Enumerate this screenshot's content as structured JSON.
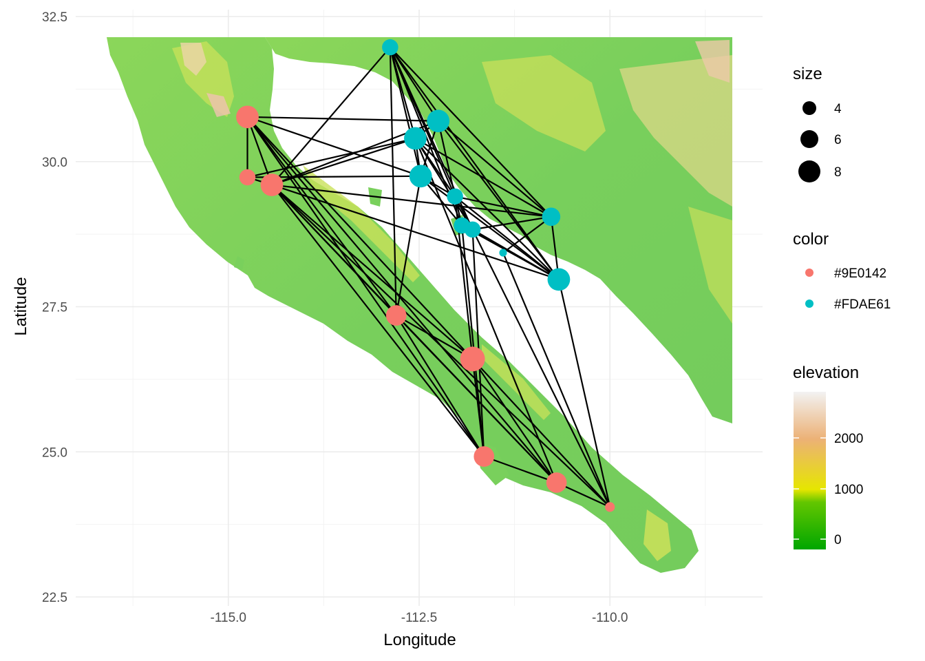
{
  "chart_data": {
    "type": "scatter",
    "xlabel": "Longitude",
    "ylabel": "Latitude",
    "xlim": [
      -117.0,
      -108.0
    ],
    "ylim": [
      22.5,
      32.5
    ],
    "x_ticks": [
      -115.0,
      -112.5,
      -110.0
    ],
    "x_tick_labels": [
      "-115.0",
      "-112.5",
      "-110.0"
    ],
    "y_ticks": [
      22.5,
      25.0,
      27.5,
      30.0,
      32.5
    ],
    "y_tick_labels": [
      "22.5",
      "25.0",
      "27.5",
      "30.0",
      "32.5"
    ],
    "grid": true,
    "colors": {
      "#9E0142": "#f8766d",
      "#FDAE61": "#00bfc4"
    },
    "nodes": [
      {
        "id": "a",
        "lon": -114.75,
        "lat": 30.77,
        "size": 8,
        "color": "#9E0142"
      },
      {
        "id": "b",
        "lon": -114.75,
        "lat": 29.73,
        "size": 5,
        "color": "#9E0142"
      },
      {
        "id": "c",
        "lon": -114.43,
        "lat": 29.6,
        "size": 8,
        "color": "#9E0142"
      },
      {
        "id": "d",
        "lon": -112.8,
        "lat": 27.35,
        "size": 7,
        "color": "#9E0142"
      },
      {
        "id": "e",
        "lon": -111.8,
        "lat": 26.6,
        "size": 9,
        "color": "#9E0142"
      },
      {
        "id": "f",
        "lon": -111.65,
        "lat": 24.92,
        "size": 7,
        "color": "#9E0142"
      },
      {
        "id": "g",
        "lon": -110.7,
        "lat": 24.47,
        "size": 7,
        "color": "#9E0142"
      },
      {
        "id": "h",
        "lon": -110.0,
        "lat": 24.05,
        "size": 2,
        "color": "#9E0142"
      },
      {
        "id": "i",
        "lon": -112.88,
        "lat": 31.97,
        "size": 5,
        "color": "#FDAE61"
      },
      {
        "id": "j",
        "lon": -112.25,
        "lat": 30.7,
        "size": 8,
        "color": "#FDAE61"
      },
      {
        "id": "k",
        "lon": -112.55,
        "lat": 30.4,
        "size": 8,
        "color": "#FDAE61"
      },
      {
        "id": "l",
        "lon": -112.48,
        "lat": 29.75,
        "size": 8,
        "color": "#FDAE61"
      },
      {
        "id": "m",
        "lon": -112.03,
        "lat": 29.4,
        "size": 5,
        "color": "#FDAE61"
      },
      {
        "id": "n",
        "lon": -111.94,
        "lat": 28.9,
        "size": 5,
        "color": "#FDAE61"
      },
      {
        "id": "o",
        "lon": -111.8,
        "lat": 28.83,
        "size": 5,
        "color": "#FDAE61"
      },
      {
        "id": "p",
        "lon": -111.4,
        "lat": 28.43,
        "size": 1,
        "color": "#FDAE61"
      },
      {
        "id": "q",
        "lon": -110.77,
        "lat": 29.05,
        "size": 6,
        "color": "#FDAE61"
      },
      {
        "id": "r",
        "lon": -110.67,
        "lat": 27.97,
        "size": 8,
        "color": "#FDAE61"
      }
    ],
    "edges": [
      [
        "a",
        "b"
      ],
      [
        "a",
        "c"
      ],
      [
        "a",
        "d"
      ],
      [
        "a",
        "e"
      ],
      [
        "a",
        "f"
      ],
      [
        "a",
        "g"
      ],
      [
        "a",
        "j"
      ],
      [
        "a",
        "l"
      ],
      [
        "b",
        "c"
      ],
      [
        "b",
        "k"
      ],
      [
        "b",
        "l"
      ],
      [
        "c",
        "i"
      ],
      [
        "c",
        "j"
      ],
      [
        "c",
        "k"
      ],
      [
        "c",
        "d"
      ],
      [
        "c",
        "e"
      ],
      [
        "c",
        "f"
      ],
      [
        "c",
        "g"
      ],
      [
        "c",
        "h"
      ],
      [
        "c",
        "r"
      ],
      [
        "c",
        "q"
      ],
      [
        "d",
        "e"
      ],
      [
        "d",
        "f"
      ],
      [
        "d",
        "g"
      ],
      [
        "d",
        "l"
      ],
      [
        "d",
        "i"
      ],
      [
        "e",
        "f"
      ],
      [
        "e",
        "g"
      ],
      [
        "e",
        "h"
      ],
      [
        "e",
        "m"
      ],
      [
        "f",
        "g"
      ],
      [
        "f",
        "n"
      ],
      [
        "f",
        "o"
      ],
      [
        "g",
        "h"
      ],
      [
        "g",
        "k"
      ],
      [
        "h",
        "o"
      ],
      [
        "h",
        "r"
      ],
      [
        "h",
        "p"
      ],
      [
        "i",
        "j"
      ],
      [
        "i",
        "k"
      ],
      [
        "i",
        "l"
      ],
      [
        "i",
        "m"
      ],
      [
        "i",
        "n"
      ],
      [
        "i",
        "o"
      ],
      [
        "i",
        "q"
      ],
      [
        "i",
        "r"
      ],
      [
        "j",
        "k"
      ],
      [
        "j",
        "l"
      ],
      [
        "j",
        "m"
      ],
      [
        "j",
        "q"
      ],
      [
        "j",
        "r"
      ],
      [
        "k",
        "l"
      ],
      [
        "k",
        "m"
      ],
      [
        "k",
        "o"
      ],
      [
        "k",
        "q"
      ],
      [
        "k",
        "r"
      ],
      [
        "l",
        "m"
      ],
      [
        "l",
        "n"
      ],
      [
        "l",
        "r"
      ],
      [
        "m",
        "n"
      ],
      [
        "m",
        "o"
      ],
      [
        "m",
        "q"
      ],
      [
        "m",
        "r"
      ],
      [
        "n",
        "o"
      ],
      [
        "n",
        "r"
      ],
      [
        "o",
        "r"
      ],
      [
        "o",
        "q"
      ],
      [
        "p",
        "q"
      ],
      [
        "q",
        "r"
      ]
    ]
  },
  "legend": {
    "size": {
      "title": "size",
      "labels": [
        "4",
        "6",
        "8"
      ],
      "values": [
        4,
        6,
        8
      ]
    },
    "color": {
      "title": "color",
      "labels": [
        "#9E0142",
        "#FDAE61"
      ],
      "swatches": [
        "#f8766d",
        "#00bfc4"
      ]
    },
    "elevation": {
      "title": "elevation",
      "labels": [
        "2000",
        "1000",
        "0"
      ],
      "values": [
        2000,
        1000,
        0
      ],
      "range": [
        -200,
        3000
      ],
      "gradient": [
        "#f2f2f2",
        "#ecb176",
        "#e6e600",
        "#63c600",
        "#00a600"
      ]
    }
  },
  "map": {
    "land_color": "#79d05c",
    "highland_color": "#e8e85a",
    "peak_color": "#ecb898"
  }
}
